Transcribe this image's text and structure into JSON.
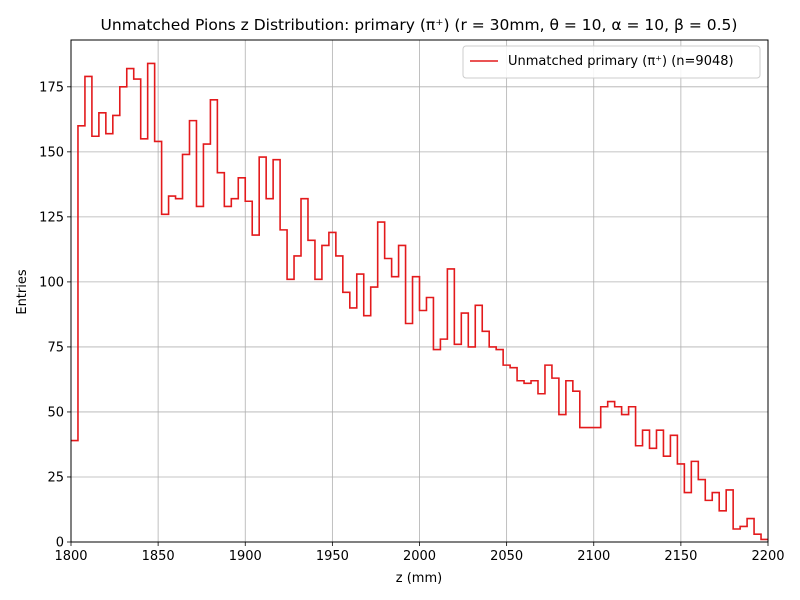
{
  "chart_data": {
    "type": "step-histogram",
    "title": "Unmatched Pions z Distribution: primary (π⁺) (r = 30mm, θ = 10, α = 10, β = 0.5)",
    "xlabel": "z (mm)",
    "ylabel": "Entries",
    "xlim": [
      1800,
      2200
    ],
    "ylim": [
      0,
      193
    ],
    "xticks": [
      1800,
      1850,
      1900,
      1950,
      2000,
      2050,
      2100,
      2150,
      2200
    ],
    "yticks": [
      0,
      25,
      50,
      75,
      100,
      125,
      150,
      175
    ],
    "grid": true,
    "legend_position": "top-right",
    "series": [
      {
        "name": "Unmatched primary (π⁺) (n=9048)",
        "color": "#e31a1c",
        "bin_start": 1800,
        "bin_width": 4,
        "values": [
          39,
          160,
          179,
          156,
          165,
          157,
          164,
          175,
          182,
          178,
          155,
          184,
          154,
          126,
          133,
          132,
          149,
          162,
          129,
          153,
          170,
          142,
          129,
          132,
          140,
          131,
          118,
          148,
          132,
          147,
          120,
          101,
          110,
          132,
          116,
          101,
          114,
          119,
          110,
          96,
          90,
          103,
          87,
          98,
          123,
          109,
          102,
          114,
          84,
          102,
          89,
          94,
          74,
          78,
          105,
          76,
          88,
          75,
          91,
          81,
          75,
          74,
          68,
          67,
          62,
          61,
          62,
          57,
          68,
          63,
          49,
          62,
          58,
          44,
          44,
          44,
          52,
          54,
          52,
          49,
          52,
          37,
          43,
          36,
          43,
          33,
          41,
          30,
          19,
          31,
          24,
          16,
          19,
          12,
          20,
          5,
          6,
          9,
          3,
          1
        ]
      }
    ]
  }
}
